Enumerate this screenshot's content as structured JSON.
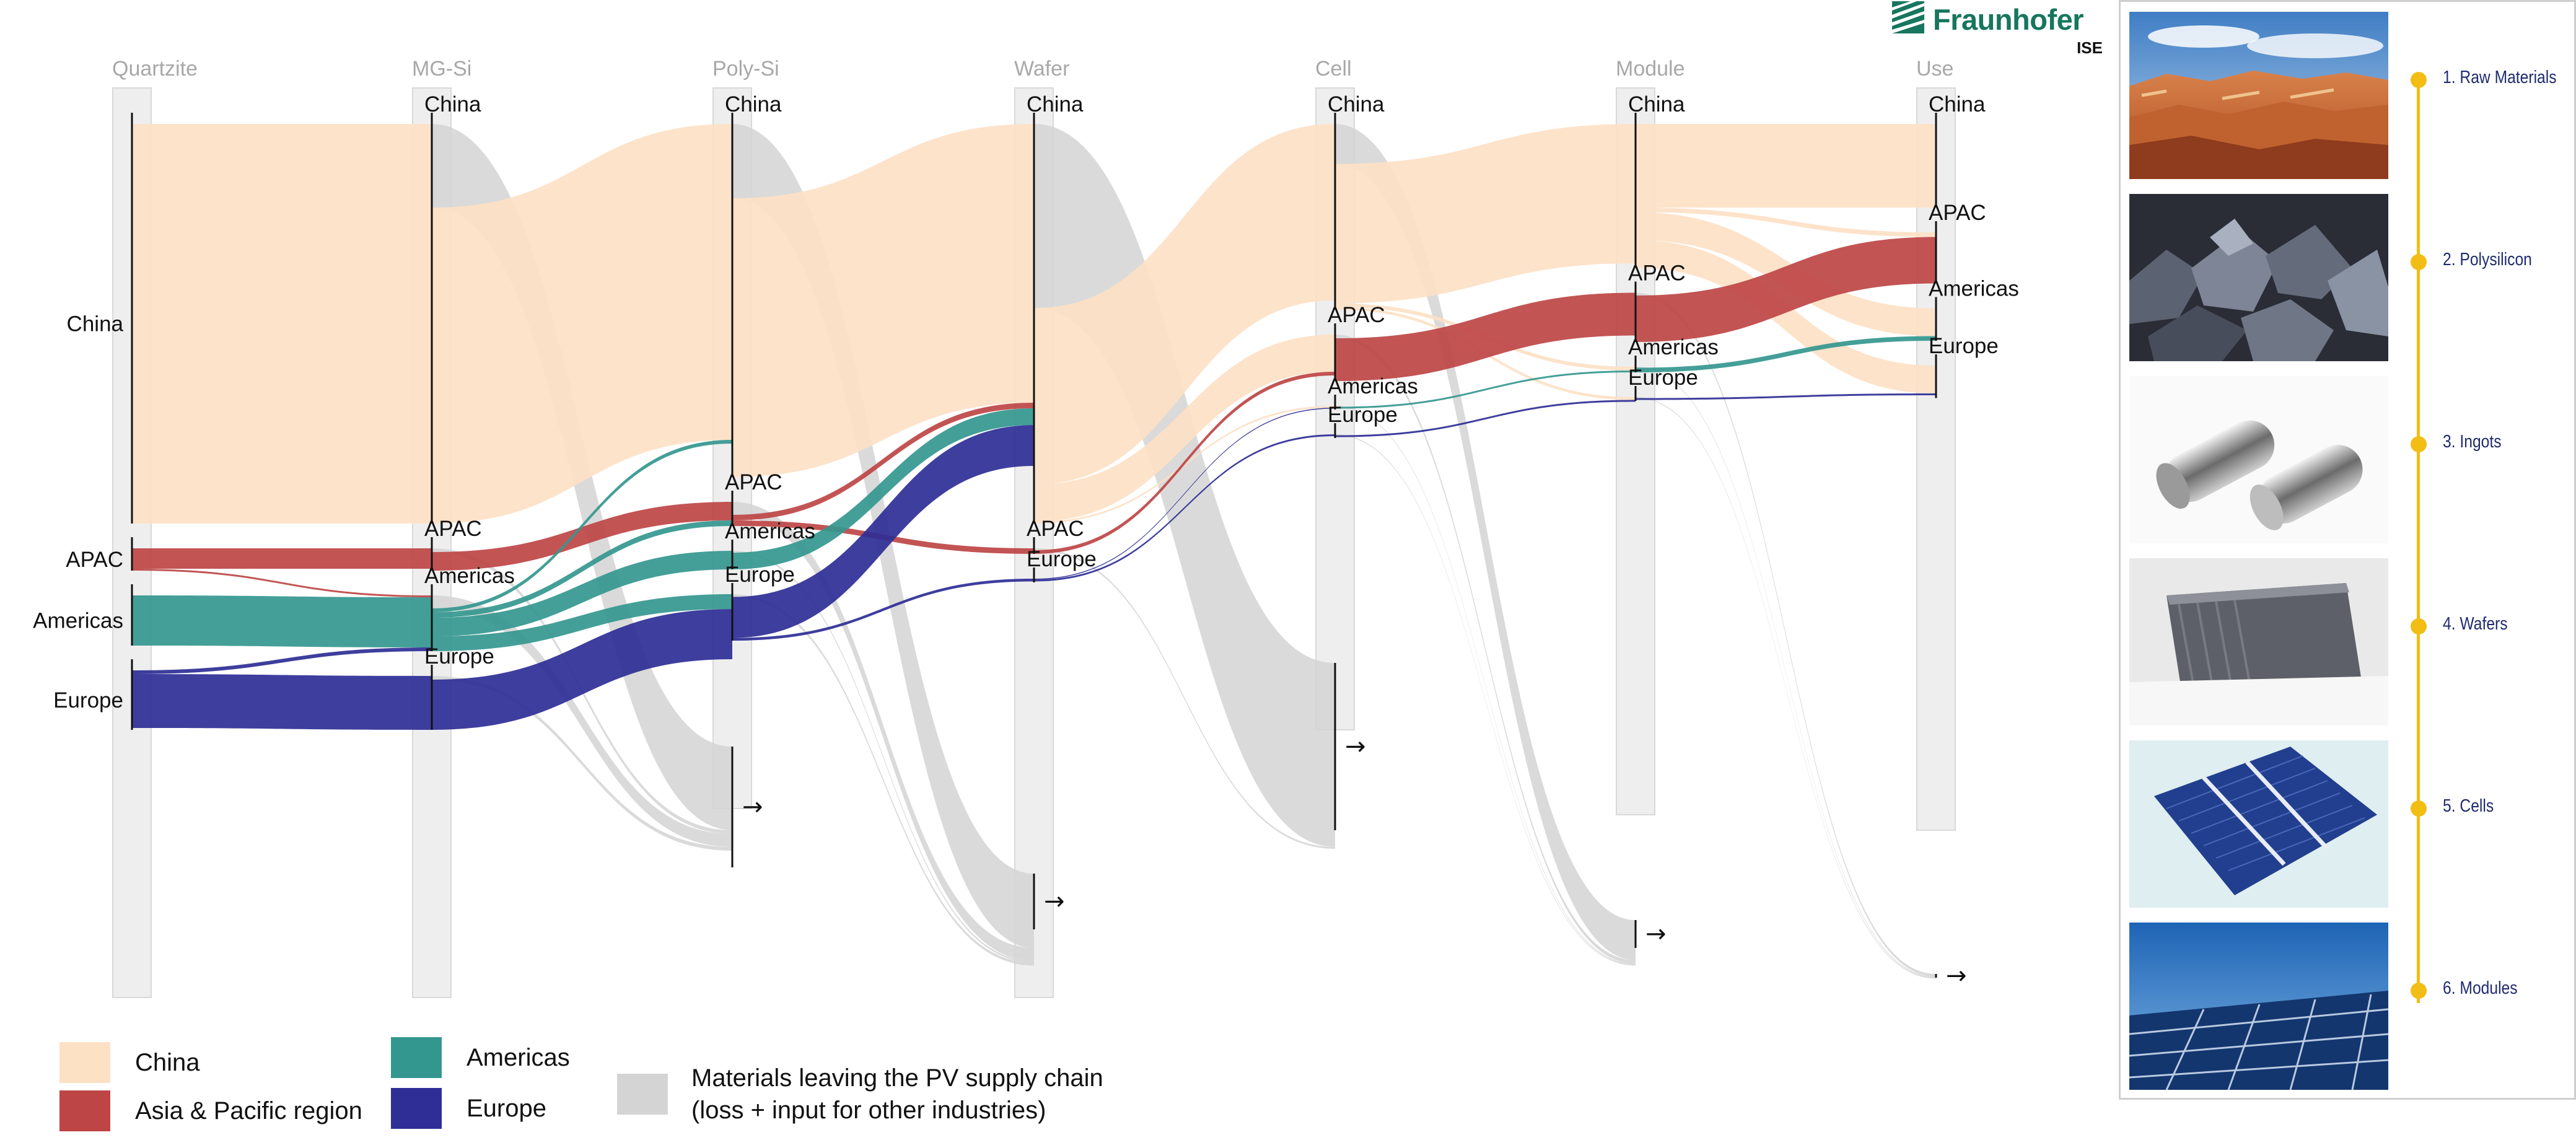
{
  "diagram": {
    "stages": [
      "Quartzite",
      "MG-Si",
      "Poly-Si",
      "Wafer",
      "Cell",
      "Module",
      "Use"
    ],
    "colors": {
      "China": "#fde1c5",
      "APAC": "#be4545",
      "Americas": "#34978f",
      "Europe": "#2e2e96",
      "Leaving": "#d4d4d4",
      "bar": "#eeeeee"
    },
    "regions": [
      "China",
      "APAC",
      "Americas",
      "Europe"
    ],
    "nodes": [
      {
        "stage": 0,
        "region": "China",
        "label": "China",
        "value": 430
      },
      {
        "stage": 0,
        "region": "APAC",
        "label": "APAC",
        "value": 24
      },
      {
        "stage": 0,
        "region": "Americas",
        "label": "Americas",
        "value": 54
      },
      {
        "stage": 0,
        "region": "Europe",
        "label": "Europe",
        "value": 64
      },
      {
        "stage": 1,
        "region": "China",
        "label": "China",
        "value": 430
      },
      {
        "stage": 1,
        "region": "APAC",
        "label": "APAC",
        "value": 24
      },
      {
        "stage": 1,
        "region": "Americas",
        "label": "Americas",
        "value": 60
      },
      {
        "stage": 1,
        "region": "Europe",
        "label": "Europe",
        "value": 58
      },
      {
        "stage": 2,
        "region": "China",
        "label": "China",
        "value": 380
      },
      {
        "stage": 2,
        "region": "APAC",
        "label": "APAC",
        "value": 26
      },
      {
        "stage": 2,
        "region": "Americas",
        "label": "Americas",
        "value": 20
      },
      {
        "stage": 2,
        "region": "Europe",
        "label": "Europe",
        "value": 50
      },
      {
        "stage": 3,
        "region": "China",
        "label": "China",
        "value": 430
      },
      {
        "stage": 3,
        "region": "APAC",
        "label": "APAC",
        "value": 6
      },
      {
        "stage": 3,
        "region": "Europe",
        "label": "Europe",
        "value": 3
      },
      {
        "stage": 4,
        "region": "China",
        "label": "China",
        "value": 200
      },
      {
        "stage": 4,
        "region": "APAC",
        "label": "APAC",
        "value": 50
      },
      {
        "stage": 4,
        "region": "Americas",
        "label": "Americas",
        "value": 3
      },
      {
        "stage": 4,
        "region": "Europe",
        "label": "Europe",
        "value": 3
      },
      {
        "stage": 5,
        "region": "China",
        "label": "China",
        "value": 155
      },
      {
        "stage": 5,
        "region": "APAC",
        "label": "APAC",
        "value": 53
      },
      {
        "stage": 5,
        "region": "Americas",
        "label": "Americas",
        "value": 6
      },
      {
        "stage": 5,
        "region": "Europe",
        "label": "Europe",
        "value": 3
      },
      {
        "stage": 6,
        "region": "China",
        "label": "China",
        "value": 90
      },
      {
        "stage": 6,
        "region": "APAC",
        "label": "APAC",
        "value": 55
      },
      {
        "stage": 6,
        "region": "Americas",
        "label": "Americas",
        "value": 35
      },
      {
        "stage": 6,
        "region": "Europe",
        "label": "Europe",
        "value": 35
      }
    ],
    "leaving_nodes": [
      {
        "after_stage": 2,
        "label": "→",
        "value": 130
      },
      {
        "after_stage": 3,
        "label": "→",
        "value": 60
      },
      {
        "after_stage": 4,
        "label": "→",
        "value": 180
      },
      {
        "after_stage": 5,
        "label": "→",
        "value": 30
      },
      {
        "after_stage": 6,
        "label": "→",
        "value": 2
      }
    ],
    "flows": [
      {
        "stage": 0,
        "from": "China",
        "to": "China",
        "value": 430
      },
      {
        "stage": 0,
        "from": "APAC",
        "to": "APAC",
        "value": 22
      },
      {
        "stage": 0,
        "from": "APAC",
        "to": "Americas",
        "value": 2
      },
      {
        "stage": 0,
        "from": "Americas",
        "to": "Americas",
        "value": 54
      },
      {
        "stage": 0,
        "from": "Europe",
        "to": "Americas",
        "value": 4
      },
      {
        "stage": 0,
        "from": "Europe",
        "to": "Europe",
        "value": 58
      },
      {
        "stage": 1,
        "from": "China",
        "to": "China",
        "value": 340
      },
      {
        "stage": 1,
        "from": "China",
        "to": "Leaving",
        "value": 90
      },
      {
        "stage": 1,
        "from": "APAC",
        "to": "APAC",
        "value": 20
      },
      {
        "stage": 1,
        "from": "APAC",
        "to": "Leaving",
        "value": 4
      },
      {
        "stage": 1,
        "from": "Americas",
        "to": "China",
        "value": 4
      },
      {
        "stage": 1,
        "from": "Americas",
        "to": "APAC",
        "value": 6
      },
      {
        "stage": 1,
        "from": "Americas",
        "to": "Americas",
        "value": 20
      },
      {
        "stage": 1,
        "from": "Americas",
        "to": "Europe",
        "value": 16
      },
      {
        "stage": 1,
        "from": "Americas",
        "to": "Leaving",
        "value": 14
      },
      {
        "stage": 1,
        "from": "Europe",
        "to": "Europe",
        "value": 54
      },
      {
        "stage": 1,
        "from": "Europe",
        "to": "Leaving",
        "value": 4
      },
      {
        "stage": 2,
        "from": "China",
        "to": "China",
        "value": 300
      },
      {
        "stage": 2,
        "from": "China",
        "to": "Leaving",
        "value": 80
      },
      {
        "stage": 2,
        "from": "APAC",
        "to": "China",
        "value": 6
      },
      {
        "stage": 2,
        "from": "APAC",
        "to": "APAC",
        "value": 6
      },
      {
        "stage": 2,
        "from": "APAC",
        "to": "Leaving",
        "value": 14
      },
      {
        "stage": 2,
        "from": "Americas",
        "to": "China",
        "value": 18
      },
      {
        "stage": 2,
        "from": "Americas",
        "to": "Leaving",
        "value": 2
      },
      {
        "stage": 2,
        "from": "Europe",
        "to": "China",
        "value": 44
      },
      {
        "stage": 2,
        "from": "Europe",
        "to": "Europe",
        "value": 3
      },
      {
        "stage": 2,
        "from": "Europe",
        "to": "Leaving",
        "value": 3
      },
      {
        "stage": 3,
        "from": "China",
        "to": "China",
        "value": 190
      },
      {
        "stage": 3,
        "from": "China",
        "to": "APAC",
        "value": 40
      },
      {
        "stage": 3,
        "from": "China",
        "to": "Americas",
        "value": 2
      },
      {
        "stage": 3,
        "from": "China",
        "to": "Leaving",
        "value": 198
      },
      {
        "stage": 3,
        "from": "APAC",
        "to": "APAC",
        "value": 4
      },
      {
        "stage": 3,
        "from": "APAC",
        "to": "Leaving",
        "value": 2
      },
      {
        "stage": 3,
        "from": "Europe",
        "to": "Americas",
        "value": 1
      },
      {
        "stage": 3,
        "from": "Europe",
        "to": "Europe",
        "value": 2
      },
      {
        "stage": 4,
        "from": "China",
        "to": "China",
        "value": 150
      },
      {
        "stage": 4,
        "from": "China",
        "to": "Americas",
        "value": 4
      },
      {
        "stage": 4,
        "from": "China",
        "to": "Europe",
        "value": 3
      },
      {
        "stage": 4,
        "from": "China",
        "to": "Leaving",
        "value": 43
      },
      {
        "stage": 4,
        "from": "APAC",
        "to": "APAC",
        "value": 46
      },
      {
        "stage": 4,
        "from": "APAC",
        "to": "Leaving",
        "value": 4
      },
      {
        "stage": 4,
        "from": "Americas",
        "to": "Americas",
        "value": 2
      },
      {
        "stage": 4,
        "from": "Americas",
        "to": "Leaving",
        "value": 1
      },
      {
        "stage": 4,
        "from": "Europe",
        "to": "Europe",
        "value": 2
      },
      {
        "stage": 4,
        "from": "Europe",
        "to": "Leaving",
        "value": 1
      },
      {
        "stage": 5,
        "from": "China",
        "to": "China",
        "value": 90
      },
      {
        "stage": 5,
        "from": "China",
        "to": "APAC",
        "value": 5
      },
      {
        "stage": 5,
        "from": "China",
        "to": "Americas",
        "value": 30
      },
      {
        "stage": 5,
        "from": "China",
        "to": "Europe",
        "value": 30
      },
      {
        "stage": 5,
        "from": "APAC",
        "to": "APAC",
        "value": 50
      },
      {
        "stage": 5,
        "from": "APAC",
        "to": "Leaving",
        "value": 3
      },
      {
        "stage": 5,
        "from": "Americas",
        "to": "Americas",
        "value": 5
      },
      {
        "stage": 5,
        "from": "Americas",
        "to": "Leaving",
        "value": 1
      },
      {
        "stage": 5,
        "from": "Europe",
        "to": "Europe",
        "value": 2
      },
      {
        "stage": 5,
        "from": "Europe",
        "to": "Leaving",
        "value": 1
      }
    ]
  },
  "legend": {
    "items": [
      {
        "label": "China",
        "color": "#fde1c5"
      },
      {
        "label": "Asia & Pacific region",
        "color": "#be4545"
      },
      {
        "label": "Americas",
        "color": "#34978f"
      },
      {
        "label": "Europe",
        "color": "#2e2e96"
      },
      {
        "label": "Materials leaving the PV supply chain\n(loss + input for other industries)",
        "color": "#d4d4d4"
      }
    ]
  },
  "logo": {
    "name": "Fraunhofer",
    "sub": "ISE",
    "color": "#17765e"
  },
  "steps": [
    {
      "label": "1. Raw Materials",
      "image_icon": "desert-landscape-photo"
    },
    {
      "label": "2. Polysilicon",
      "image_icon": "polysilicon-chunks-photo"
    },
    {
      "label": "3. Ingots",
      "image_icon": "silicon-ingots-photo"
    },
    {
      "label": "4. Wafers",
      "image_icon": "wafer-stack-photo"
    },
    {
      "label": "5. Cells",
      "image_icon": "solar-cell-photo"
    },
    {
      "label": "6. Modules",
      "image_icon": "solar-modules-photo"
    }
  ]
}
